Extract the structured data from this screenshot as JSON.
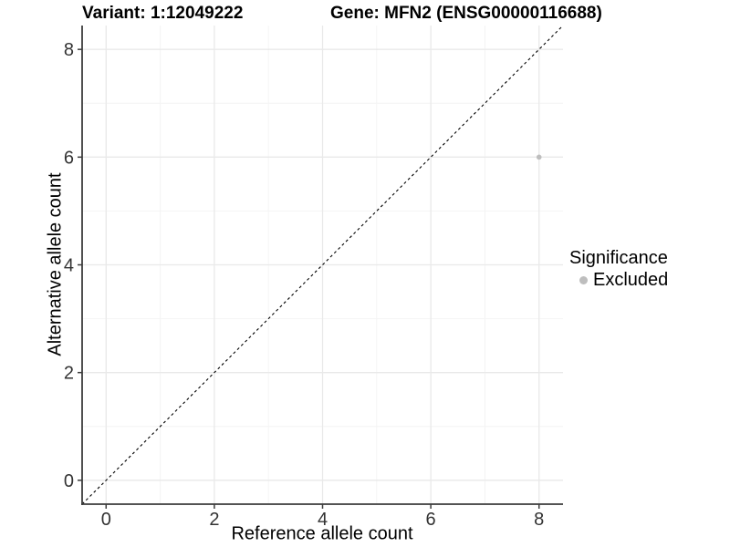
{
  "chart_data": {
    "type": "scatter",
    "titles": {
      "left": "Variant: 1:12049222",
      "right": "Gene: MFN2 (ENSG00000116688)"
    },
    "xlabel": "Reference allele count",
    "ylabel": "Alternative allele count",
    "xlim": [
      -0.443,
      8.443
    ],
    "ylim": [
      -0.443,
      8.443
    ],
    "xticks": [
      0,
      2,
      4,
      6,
      8
    ],
    "yticks": [
      0,
      2,
      4,
      6,
      8
    ],
    "minor_xticks": [
      1,
      3,
      5,
      7
    ],
    "minor_yticks": [
      1,
      3,
      5,
      7
    ],
    "grid": true,
    "series": [
      {
        "name": "Excluded",
        "color": "#bebebe",
        "points": [
          {
            "x": 8,
            "y": 6
          }
        ]
      }
    ],
    "reference_line": {
      "kind": "identity",
      "style": "dashed",
      "color": "#000000"
    },
    "legend": {
      "title": "Significance",
      "position": "right",
      "items": [
        {
          "label": "Excluded",
          "color": "#bebebe"
        }
      ]
    },
    "colors": {
      "background": "#ffffff",
      "grid_major": "#e9e9e9",
      "grid_minor": "#f4f4f4",
      "axis_line": "#3c3c3c",
      "tick_label": "#333333",
      "point": "#bebebe"
    }
  }
}
